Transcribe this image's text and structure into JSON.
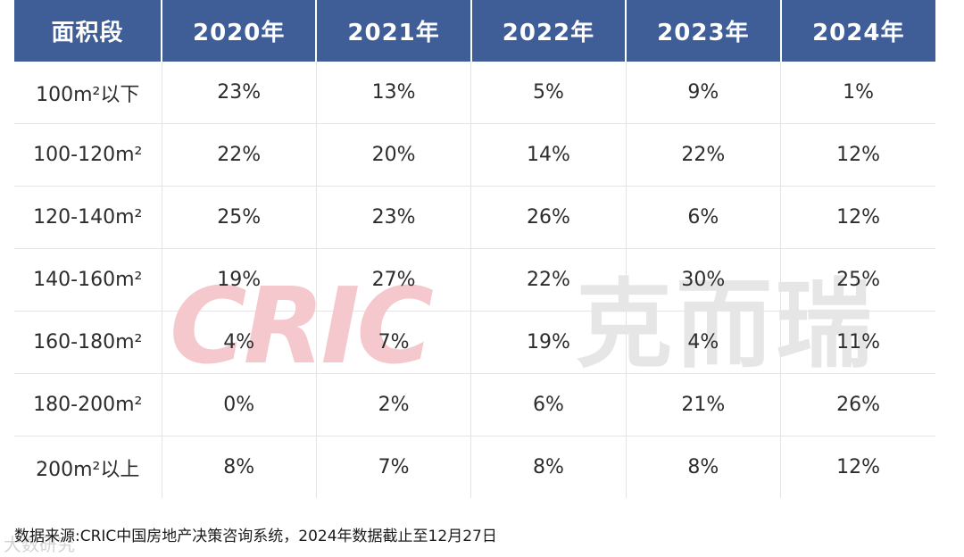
{
  "chart_data": {
    "type": "table",
    "columns": [
      "面积段",
      "2020年",
      "2021年",
      "2022年",
      "2023年",
      "2024年"
    ],
    "rows": [
      [
        "100m²以下",
        "23%",
        "13%",
        "5%",
        "9%",
        "1%"
      ],
      [
        "100-120m²",
        "22%",
        "20%",
        "14%",
        "22%",
        "12%"
      ],
      [
        "120-140m²",
        "25%",
        "23%",
        "26%",
        "6%",
        "12%"
      ],
      [
        "140-160m²",
        "19%",
        "27%",
        "22%",
        "30%",
        "25%"
      ],
      [
        "160-180m²",
        "4%",
        "7%",
        "19%",
        "4%",
        "11%"
      ],
      [
        "180-200m²",
        "0%",
        "2%",
        "6%",
        "21%",
        "26%"
      ],
      [
        "200m²以上",
        "8%",
        "7%",
        "8%",
        "8%",
        "12%"
      ]
    ]
  },
  "colors": {
    "header_bg": "#3f5d97",
    "header_text": "#ffffff",
    "grid_line": "#e4e4e4"
  },
  "watermark": {
    "logo_text": "CRIC",
    "cn_text": "克而瑞",
    "bottom_text": "大数研究"
  },
  "footer": {
    "source": "数据来源:CRIC中国房地产决策咨询系统，2024年数据截止至12月27日"
  }
}
